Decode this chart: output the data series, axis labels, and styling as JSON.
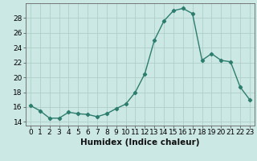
{
  "x": [
    0,
    1,
    2,
    3,
    4,
    5,
    6,
    7,
    8,
    9,
    10,
    11,
    12,
    13,
    14,
    15,
    16,
    17,
    18,
    19,
    20,
    21,
    22,
    23
  ],
  "y": [
    16.2,
    15.5,
    14.5,
    14.5,
    15.3,
    15.1,
    15.0,
    14.7,
    15.1,
    15.8,
    16.4,
    18.0,
    20.5,
    25.0,
    27.6,
    29.0,
    29.3,
    28.6,
    22.3,
    23.2,
    22.3,
    22.1,
    18.7,
    17.0
  ],
  "line_color": "#2d7d6e",
  "bg_color": "#cce8e4",
  "grid_color": "#b0d0cc",
  "xlabel": "Humidex (Indice chaleur)",
  "xlim": [
    -0.5,
    23.5
  ],
  "ylim": [
    13.5,
    30.0
  ],
  "yticks": [
    14,
    16,
    18,
    20,
    22,
    24,
    26,
    28
  ],
  "xticks": [
    0,
    1,
    2,
    3,
    4,
    5,
    6,
    7,
    8,
    9,
    10,
    11,
    12,
    13,
    14,
    15,
    16,
    17,
    18,
    19,
    20,
    21,
    22,
    23
  ],
  "marker": "D",
  "marker_size": 2.2,
  "line_width": 1.0,
  "tick_fontsize": 6.5,
  "xlabel_fontsize": 7.5
}
